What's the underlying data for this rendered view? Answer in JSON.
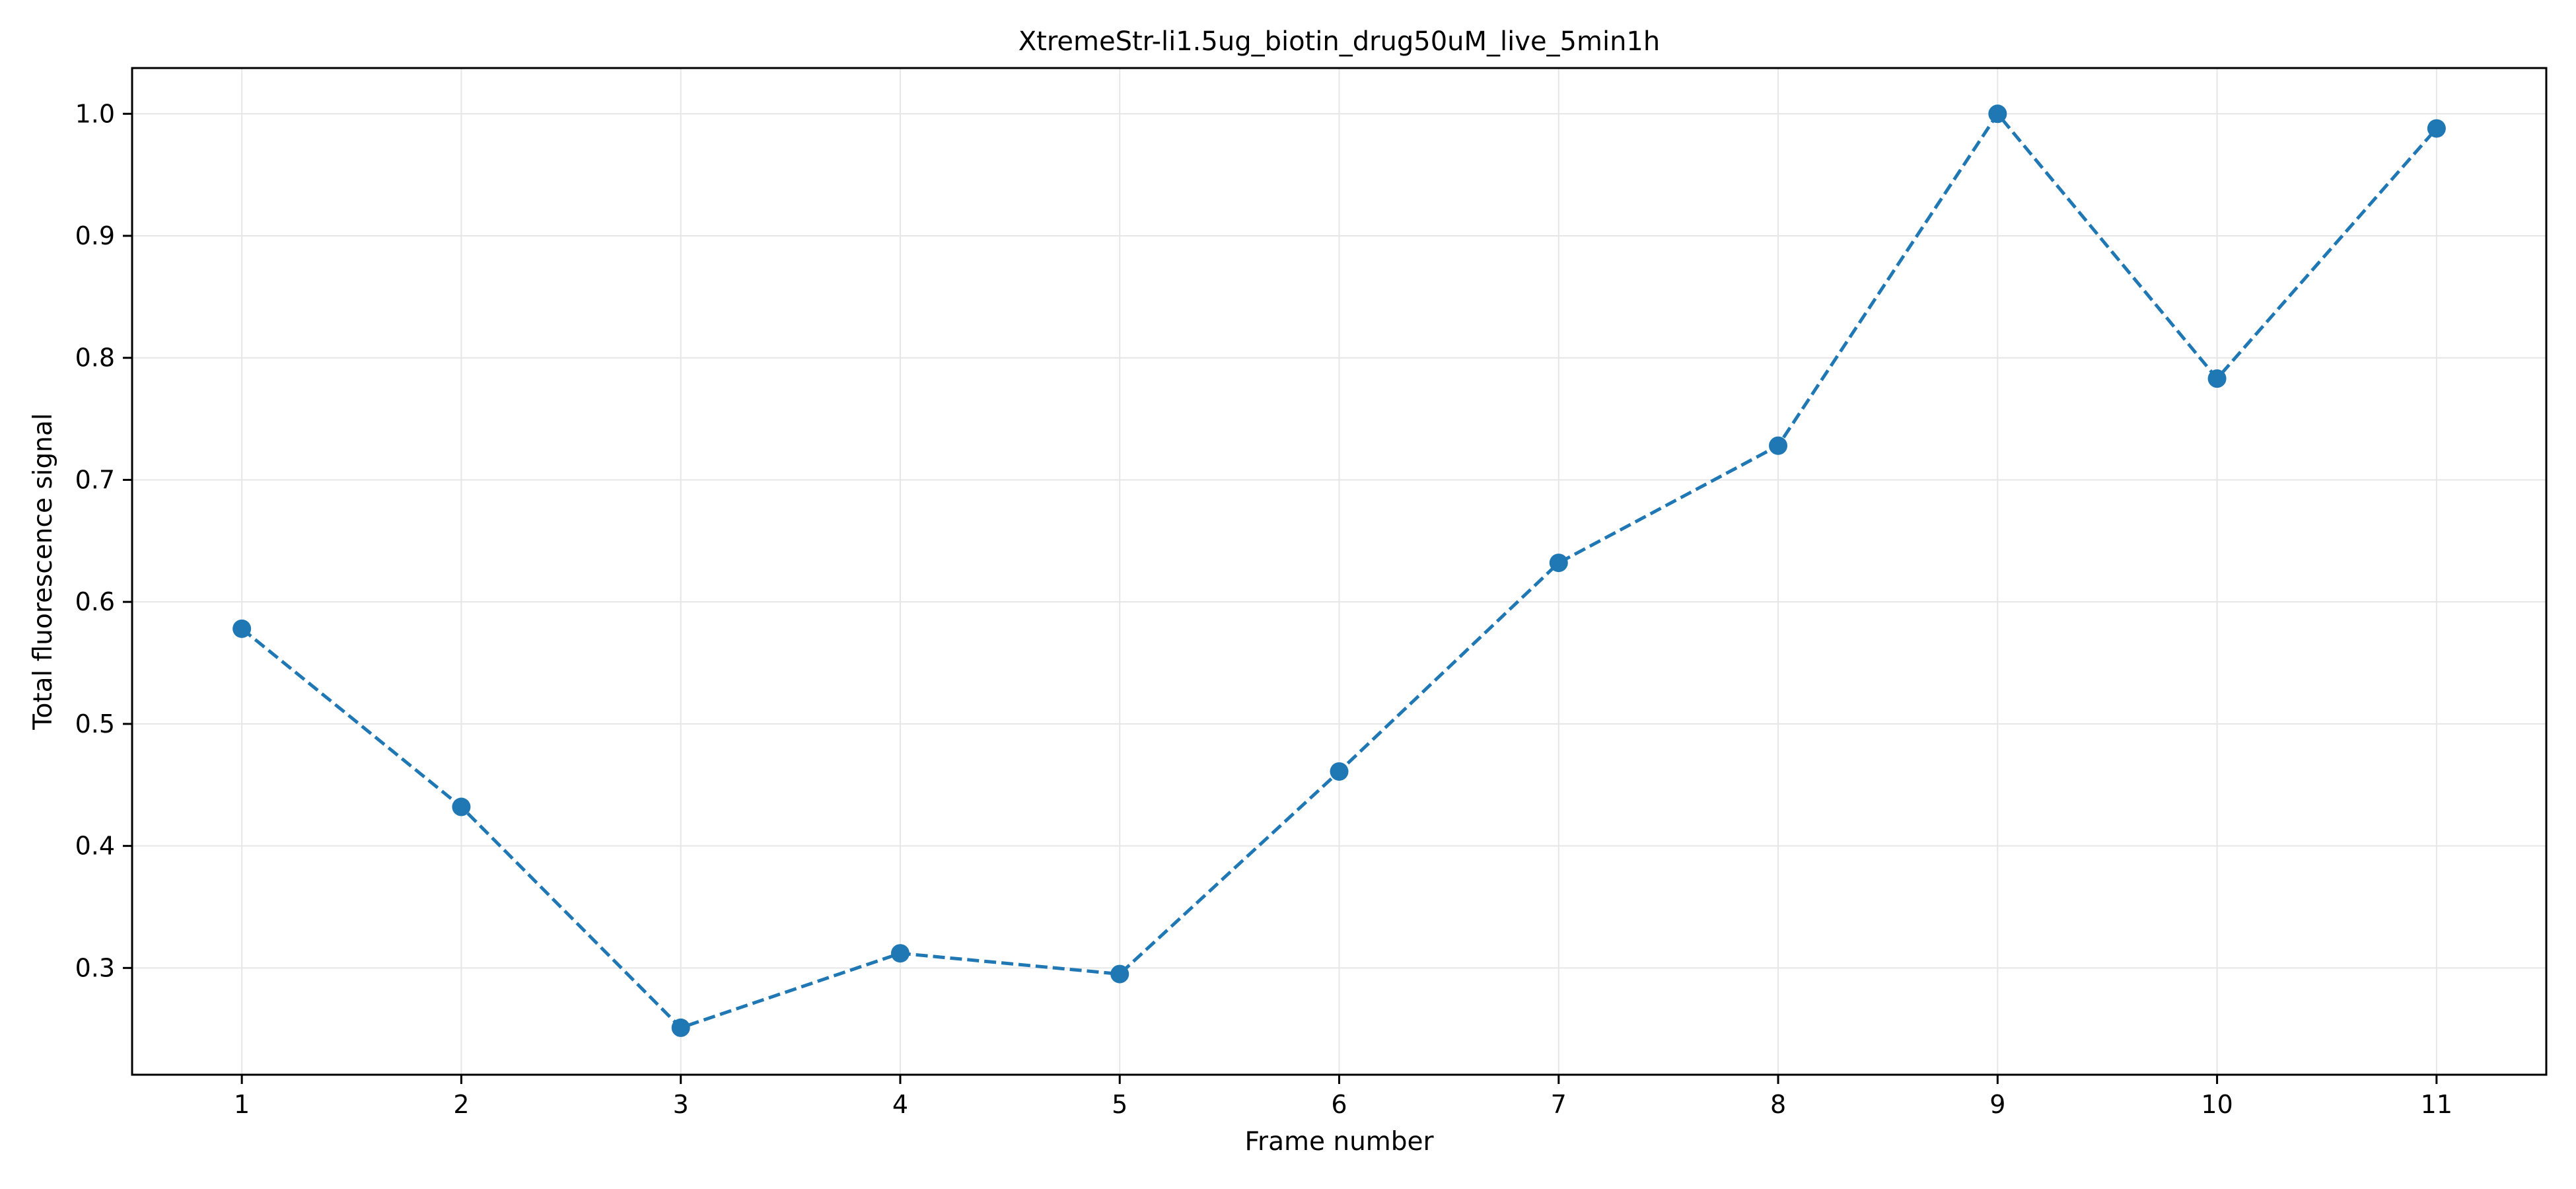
{
  "chart_data": {
    "type": "line",
    "title": "XtremeStr-li1.5ug_biotin_drug50uM_live_5min1h",
    "xlabel": "Frame number",
    "ylabel": "Total fluorescence signal",
    "x": [
      1,
      2,
      3,
      4,
      5,
      6,
      7,
      8,
      9,
      10,
      11
    ],
    "series": [
      {
        "values": [
          0.578,
          0.432,
          0.251,
          0.312,
          0.295,
          0.461,
          0.632,
          0.728,
          1.0,
          0.783,
          0.988
        ]
      }
    ],
    "xlim": [
      0.5,
      11.5
    ],
    "ylim": [
      0.2125,
      1.0375
    ],
    "xticks": [
      "1",
      "2",
      "3",
      "4",
      "5",
      "6",
      "7",
      "8",
      "9",
      "10",
      "11"
    ],
    "yticks": [
      "0.3",
      "0.4",
      "0.5",
      "0.6",
      "0.7",
      "0.8",
      "0.9",
      "1.0"
    ],
    "ytick_values": [
      0.3,
      0.4,
      0.5,
      0.6,
      0.7,
      0.8,
      0.9,
      1.0
    ],
    "line_style": "dashed",
    "marker": "circle",
    "grid": true,
    "colors": {
      "series": "#1f77b4",
      "grid": "#e6e6e6",
      "axes": "#000000"
    }
  }
}
